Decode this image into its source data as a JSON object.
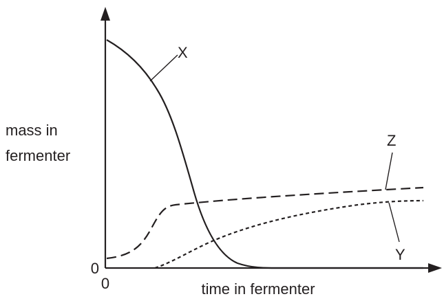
{
  "axes": {
    "y_label": [
      "mass in",
      "fermenter"
    ],
    "x_label": "time in fermenter",
    "y_origin": "0",
    "x_origin": "0"
  },
  "curves": [
    {
      "label": "X"
    },
    {
      "label": "Z"
    },
    {
      "label": "Y"
    }
  ]
}
